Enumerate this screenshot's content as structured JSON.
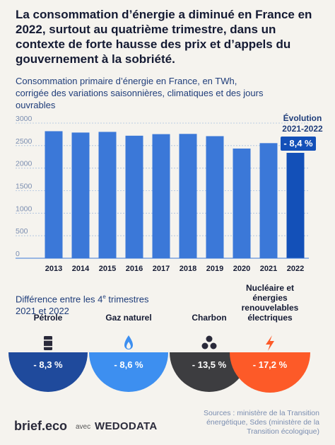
{
  "headline": "La consommation d’énergie a diminué en France en 2022, surtout au quatrième trimestre, dans un contexte de forte hausse des prix et d’appels du gouvernement à la sobriété.",
  "subtitle": "Consommation primaire d’énergie en France, en TWh, corrigée des variations saisonnières, climatiques et des jours ouvrables",
  "evolution": {
    "label": "Évolution 2021-2022",
    "value": "- 8,4 %"
  },
  "colors": {
    "bar": "#3b78d8",
    "bar_last": "#1350b8",
    "petrole": "#1f4a9c",
    "gaz": "#3d8ff0",
    "charbon": "#3d3d40",
    "nucleaire": "#fd5a28"
  },
  "chart_data": {
    "type": "bar",
    "categories": [
      "2013",
      "2014",
      "2015",
      "2016",
      "2017",
      "2018",
      "2019",
      "2020",
      "2021",
      "2022"
    ],
    "values": [
      2820,
      2790,
      2805,
      2720,
      2755,
      2760,
      2710,
      2435,
      2555,
      2340
    ],
    "ylim": [
      0,
      3000
    ],
    "yticks": [
      0,
      500,
      1000,
      1500,
      2000,
      2500,
      3000
    ],
    "ytick_labels": [
      "0",
      "500",
      "1000",
      "1500",
      "2000",
      "2500",
      "3000"
    ],
    "grid": true
  },
  "diff_title": "Différence entre les 4e trimestres 2021 et 2022",
  "energies": [
    {
      "name": "Pétrole",
      "value": "- 8,3 %",
      "icon": "oil-barrel-icon"
    },
    {
      "name": "Gaz naturel",
      "value": "- 8,6 %",
      "icon": "gas-flame-icon"
    },
    {
      "name": "Charbon",
      "value": "- 13,5 %",
      "icon": "coal-icon"
    },
    {
      "name": "Nucléaire et énergies renouvelables électriques",
      "value": "- 17,2 %",
      "icon": "lightning-icon"
    }
  ],
  "footer": {
    "logo": "brief.eco",
    "avec": "avec",
    "partner": "WEDODATA",
    "sources": "Sources : ministère de la Transition énergétique, Sdes (ministère de la Transition écologique)"
  }
}
